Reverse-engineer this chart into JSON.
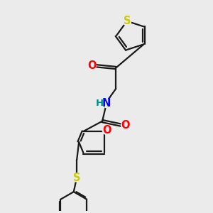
{
  "bg_color": "#ebebeb",
  "bond_color": "#1a1a1a",
  "O_color": "#ff0000",
  "N_color": "#0000ff",
  "H_color": "#008b8b",
  "S_color": "#cccc00",
  "font_size": 10.5,
  "bond_width": 1.6,
  "dbo": 0.055,
  "xlim": [
    0,
    10
  ],
  "ylim": [
    0,
    10
  ]
}
